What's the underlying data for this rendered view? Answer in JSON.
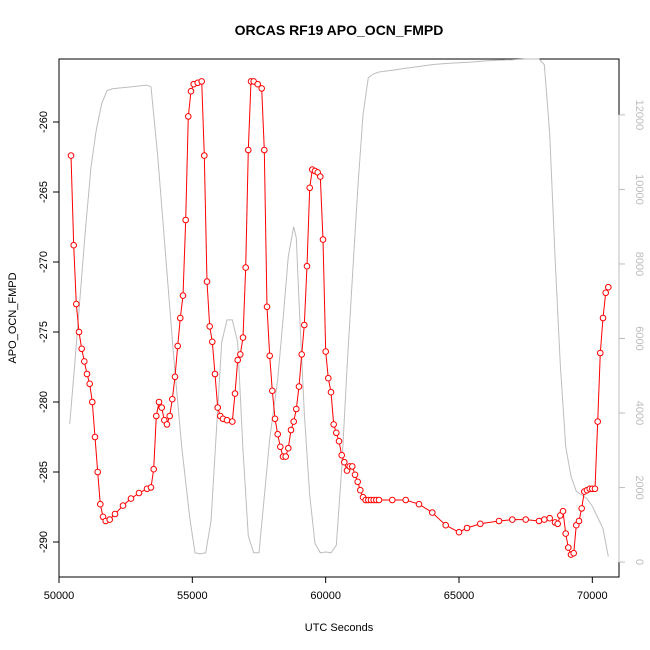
{
  "chart_data": {
    "type": "line",
    "title": "ORCAS RF19 APO_OCN_FMPD",
    "xlabel": "UTC Seconds",
    "ylabel": "APO_OCN_FMPD",
    "xlim": [
      50000,
      71000
    ],
    "ylim": [
      -292.5,
      -255.5
    ],
    "y2lim": [
      -400,
      13500
    ],
    "xticks": [
      50000,
      55000,
      60000,
      65000,
      70000
    ],
    "yticks": [
      -290,
      -285,
      -280,
      -275,
      -270,
      -265,
      -260
    ],
    "y2ticks": [
      0,
      2000,
      4000,
      6000,
      8000,
      10000,
      12000
    ],
    "grid": false,
    "colors": {
      "primary": "#ff0000",
      "secondary": "#bdbdbd"
    },
    "series": [
      {
        "role": "primary",
        "x": [
          50450,
          50550,
          50650,
          50750,
          50850,
          50950,
          51050,
          51150,
          51250,
          51350,
          51450,
          51550,
          51650,
          51750,
          51900,
          52100,
          52400,
          52700,
          53000,
          53300,
          53450,
          53550,
          53650,
          53750,
          53850,
          53950,
          54050,
          54150,
          54250,
          54350,
          54450,
          54550,
          54650,
          54750,
          54850,
          54950,
          55050,
          55200,
          55350,
          55450,
          55550,
          55650,
          55750,
          55850,
          55950,
          56050,
          56150,
          56300,
          56500,
          56600,
          56700,
          56800,
          56900,
          57000,
          57100,
          57200,
          57300,
          57450,
          57600,
          57700,
          57800,
          57900,
          58000,
          58100,
          58200,
          58300,
          58400,
          58500,
          58600,
          58700,
          58800,
          58900,
          59000,
          59100,
          59200,
          59300,
          59400,
          59500,
          59600,
          59700,
          59800,
          59900,
          60000,
          60100,
          60200,
          60300,
          60400,
          60500,
          60600,
          60700,
          60800,
          60900,
          61000,
          61100,
          61200,
          61300,
          61400,
          61500,
          61600,
          61700,
          61800,
          61900,
          62000,
          62500,
          63000,
          63500,
          64000,
          64500,
          65000,
          65300,
          65800,
          66500,
          67000,
          67500,
          68000,
          68200,
          68400,
          68600,
          68700,
          68800,
          68900,
          69000,
          69100,
          69200,
          69300,
          69400,
          69500,
          69600,
          69700,
          69800,
          69900,
          70000,
          70100,
          70200,
          70300,
          70400,
          70500,
          70600
        ],
        "values": [
          -262.4,
          -268.8,
          -273.0,
          -275.0,
          -276.2,
          -277.1,
          -278.0,
          -278.7,
          -280.0,
          -282.5,
          -285.0,
          -287.3,
          -288.2,
          -288.5,
          -288.4,
          -288.0,
          -287.4,
          -286.9,
          -286.5,
          -286.2,
          -286.1,
          -284.8,
          -281.0,
          -280.0,
          -280.4,
          -281.3,
          -281.6,
          -281.0,
          -279.8,
          -278.2,
          -276.0,
          -274.0,
          -272.4,
          -267.0,
          -259.6,
          -257.8,
          -257.3,
          -257.2,
          -257.1,
          -262.4,
          -271.4,
          -274.6,
          -275.7,
          -278.0,
          -280.4,
          -281.0,
          -281.2,
          -281.3,
          -281.4,
          -279.4,
          -277.0,
          -276.6,
          -275.4,
          -270.4,
          -262.0,
          -257.1,
          -257.1,
          -257.3,
          -257.6,
          -262.0,
          -273.2,
          -276.7,
          -279.2,
          -281.2,
          -282.3,
          -283.2,
          -283.9,
          -283.9,
          -283.3,
          -282.0,
          -281.4,
          -280.5,
          -278.9,
          -276.6,
          -274.5,
          -270.3,
          -264.7,
          -263.4,
          -263.5,
          -263.6,
          -263.9,
          -268.4,
          -276.4,
          -278.3,
          -279.3,
          -281.6,
          -282.2,
          -282.8,
          -283.8,
          -284.3,
          -284.9,
          -284.6,
          -284.6,
          -285.2,
          -285.7,
          -286.3,
          -286.8,
          -287.0,
          -287.0,
          -287.0,
          -287.0,
          -287.0,
          -287.0,
          -287.0,
          -287.0,
          -287.3,
          -287.9,
          -288.8,
          -289.3,
          -289.0,
          -288.7,
          -288.5,
          -288.4,
          -288.4,
          -288.5,
          -288.4,
          -288.3,
          -288.6,
          -288.7,
          -288.1,
          -287.8,
          -289.4,
          -290.4,
          -290.9,
          -290.8,
          -288.8,
          -288.5,
          -287.6,
          -286.4,
          -286.3,
          -286.2,
          -286.2,
          -286.2,
          -281.4,
          -276.5,
          -274.0,
          -272.2,
          -271.8
        ]
      },
      {
        "role": "secondary",
        "x": [
          50400,
          50600,
          50800,
          51000,
          51200,
          51400,
          51600,
          51800,
          52000,
          53300,
          53450,
          53700,
          54000,
          54300,
          54600,
          54900,
          55100,
          55300,
          55500,
          55700,
          56100,
          56300,
          56500,
          56700,
          56900,
          57100,
          57300,
          57500,
          57900,
          58200,
          58400,
          58600,
          58800,
          58900,
          59000,
          59200,
          59400,
          59600,
          59800,
          60000,
          60200,
          60400,
          60600,
          60800,
          61000,
          61200,
          61400,
          61600,
          61800,
          62000,
          62500,
          63000,
          63500,
          64000,
          64500,
          65000,
          65500,
          66000,
          66500,
          67000,
          67500,
          68000,
          68200,
          68400,
          68600,
          68800,
          69000,
          69200,
          69400,
          69600,
          69800,
          70000,
          70200,
          70400,
          70600
        ],
        "values": [
          3700,
          5400,
          7200,
          9000,
          10600,
          11600,
          12300,
          12650,
          12700,
          12800,
          12750,
          10900,
          8200,
          5500,
          3100,
          1200,
          250,
          220,
          250,
          1100,
          5900,
          6500,
          6500,
          5900,
          3000,
          700,
          250,
          250,
          3300,
          4900,
          6500,
          8200,
          9000,
          8700,
          7000,
          4000,
          1800,
          500,
          250,
          270,
          250,
          450,
          2500,
          5200,
          7600,
          10000,
          12000,
          13000,
          13100,
          13150,
          13200,
          13250,
          13300,
          13350,
          13380,
          13400,
          13420,
          13450,
          13470,
          13480,
          13500,
          13500,
          13350,
          11500,
          8200,
          5300,
          3100,
          2300,
          1900,
          1800,
          1700,
          1500,
          1200,
          900,
          150
        ]
      }
    ]
  }
}
